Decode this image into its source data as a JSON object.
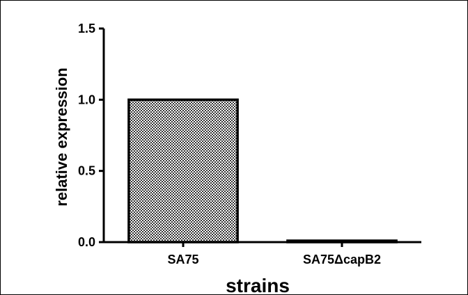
{
  "chart_data": {
    "type": "bar",
    "title": "",
    "xlabel": "strains",
    "ylabel": "relative expression",
    "categories": [
      "SA75",
      "SA75ΔcapB2"
    ],
    "values": [
      1.0,
      0.01
    ],
    "ylim": [
      0,
      1.5
    ],
    "yticks": [
      "0.0",
      "0.5",
      "1.0",
      "1.5"
    ],
    "grid": false,
    "legend": "none",
    "bar_fill": "checkered gray",
    "colors": {
      "bar_outline": "#000000",
      "bar_pattern_dark": "#333333",
      "bar_pattern_light": "#ffffff"
    }
  }
}
